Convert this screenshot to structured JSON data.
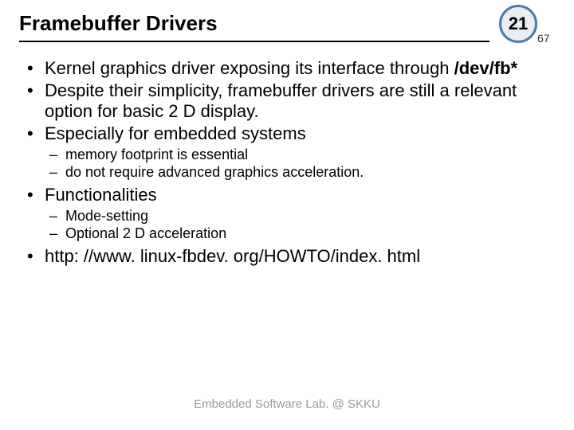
{
  "header": {
    "title": "Framebuffer Drivers",
    "slide_number": "21",
    "total_slides": "67"
  },
  "bullets": [
    {
      "text_parts": [
        "Kernel graphics driver exposing its interface through ",
        "/dev/fb*"
      ],
      "bold_index": 1,
      "sub": []
    },
    {
      "text_parts": [
        "Despite their simplicity, framebuffer drivers are still a relevant option for basic 2 D display."
      ],
      "sub": []
    },
    {
      "text_parts": [
        "Especially for embedded systems"
      ],
      "sub": [
        "memory footprint is essential",
        "do not require advanced graphics acceleration."
      ]
    },
    {
      "text_parts": [
        "Functionalities"
      ],
      "sub": [
        "Mode-setting",
        "Optional 2 D acceleration"
      ]
    },
    {
      "text_parts": [
        "http: //www. linux-fbdev. org/HOWTO/index. html"
      ],
      "sub": []
    }
  ],
  "footer": "Embedded Software Lab. @ SKKU"
}
